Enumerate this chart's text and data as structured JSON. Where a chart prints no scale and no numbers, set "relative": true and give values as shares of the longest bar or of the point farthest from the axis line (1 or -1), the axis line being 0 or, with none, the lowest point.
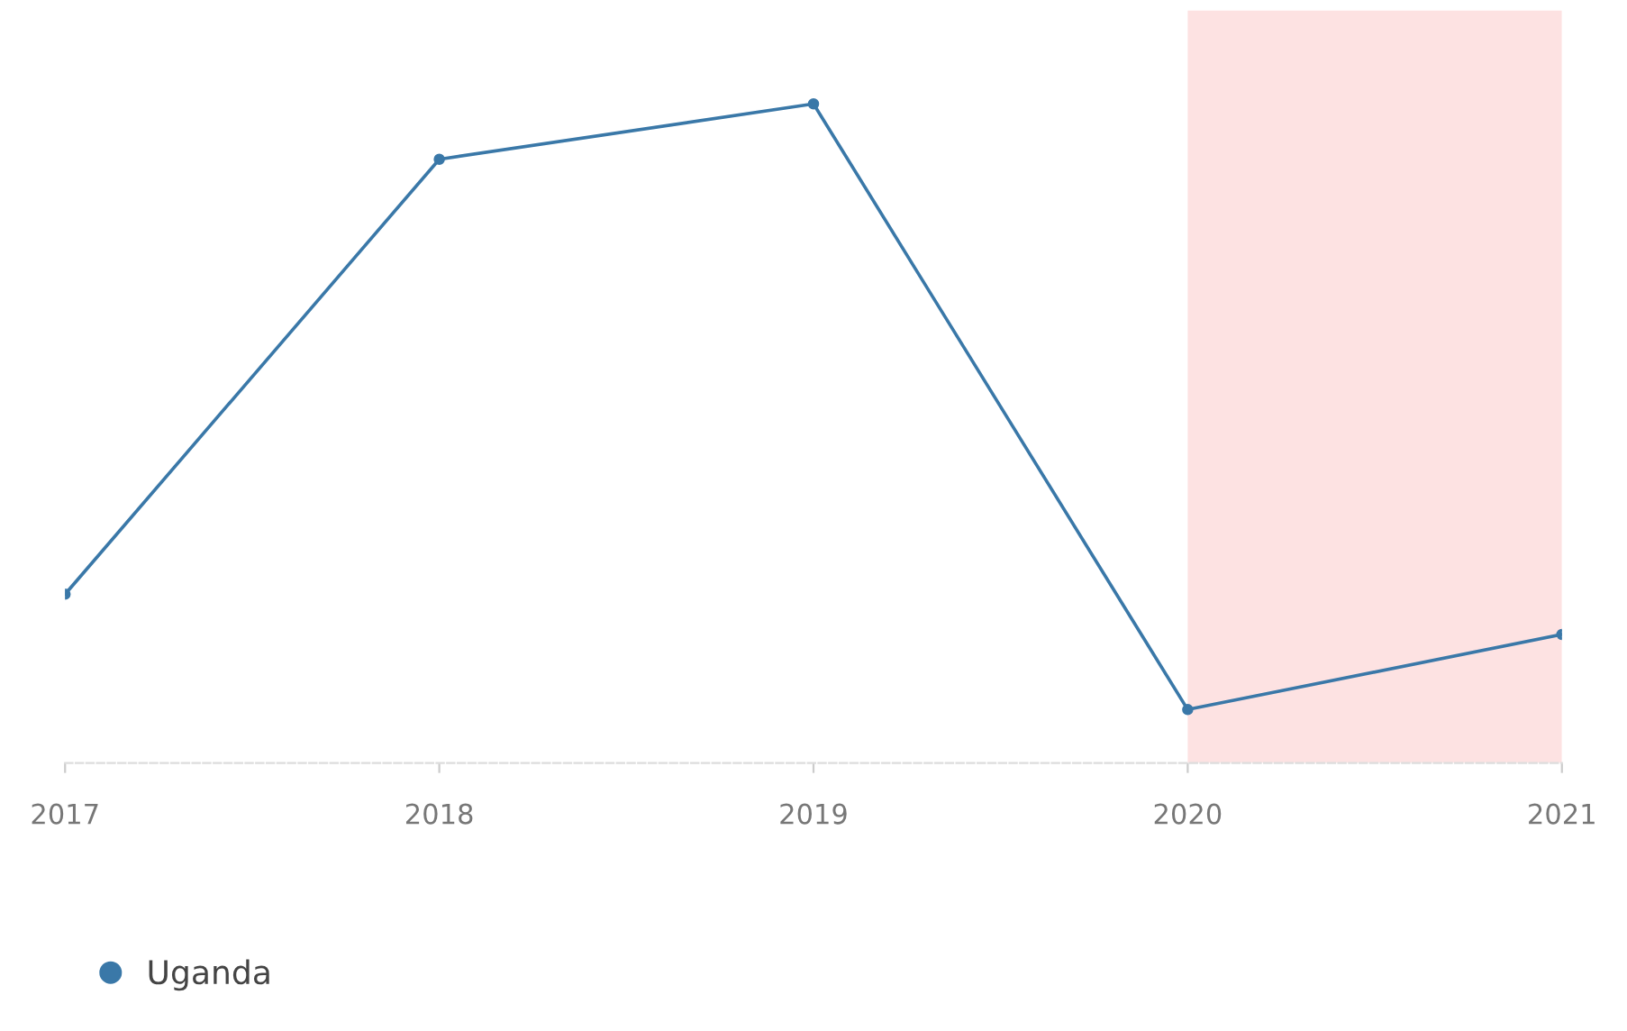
{
  "chart_data": {
    "type": "line",
    "relative": true,
    "x": [
      2017,
      2018,
      2019,
      2020,
      2021
    ],
    "xlim": [
      2017,
      2021
    ],
    "xticks": [
      2017,
      2018,
      2019,
      2020,
      2021
    ],
    "series": [
      {
        "name": "Uganda",
        "color": "#3a78a8",
        "values": [
          0.256,
          0.916,
          1,
          0.081,
          0.195
        ]
      }
    ],
    "bands": [
      {
        "axis": "x",
        "from": 2020,
        "to": 2021,
        "color": "#fde2e2"
      }
    ],
    "legend": "bottom left",
    "marker": "circle",
    "line_style": "solid"
  }
}
